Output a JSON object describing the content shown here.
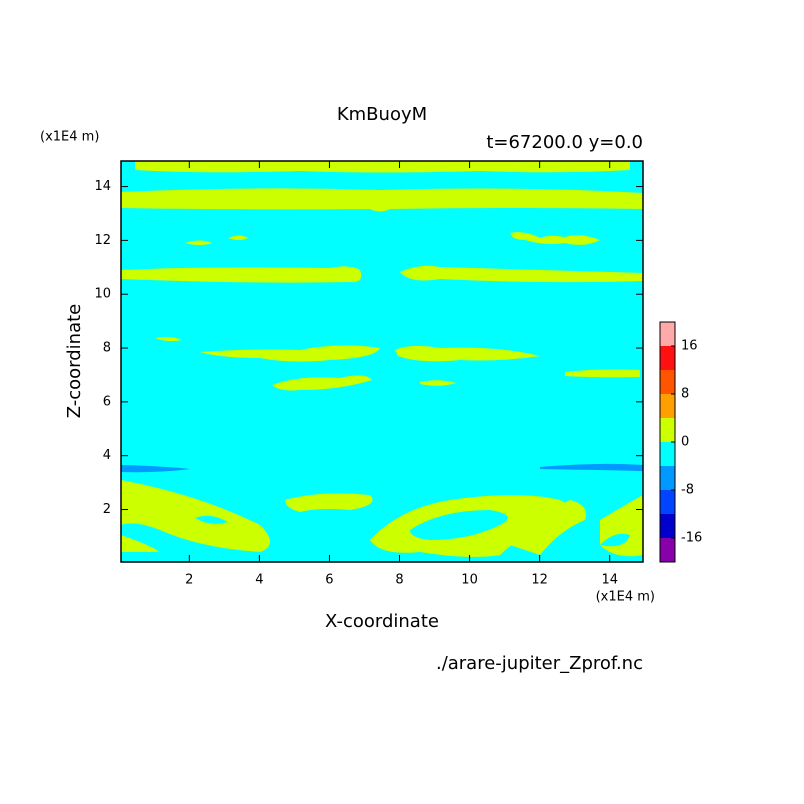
{
  "chart_data": {
    "type": "contour",
    "title": "KmBuoyM",
    "subtitle": "t=67200.0 y=0.0",
    "x_label": "X-coordinate",
    "y_label": "Z-coordinate",
    "x_unit": "(x1E4 m)",
    "y_unit": "(x1E4 m)",
    "source": "./arare-jupiter_Zprof.nc",
    "xlim": [
      0.05,
      14.95
    ],
    "ylim": [
      0.05,
      14.95
    ],
    "xticks": [
      2,
      4,
      6,
      8,
      10,
      12,
      14
    ],
    "yticks": [
      2,
      4,
      6,
      8,
      10,
      12,
      14
    ],
    "colorbar": {
      "levels": [
        -20,
        -16,
        -12,
        -8,
        -4,
        0,
        4,
        8,
        12,
        16,
        20
      ],
      "colors": [
        "#8800aa",
        "#0000cc",
        "#0044ff",
        "#0099ff",
        "#00ffff",
        "#ccff00",
        "#ffa000",
        "#ff5500",
        "#ff1111",
        "#ffaaaa"
      ],
      "ticks": [
        -16,
        -8,
        0,
        8,
        16
      ]
    }
  }
}
